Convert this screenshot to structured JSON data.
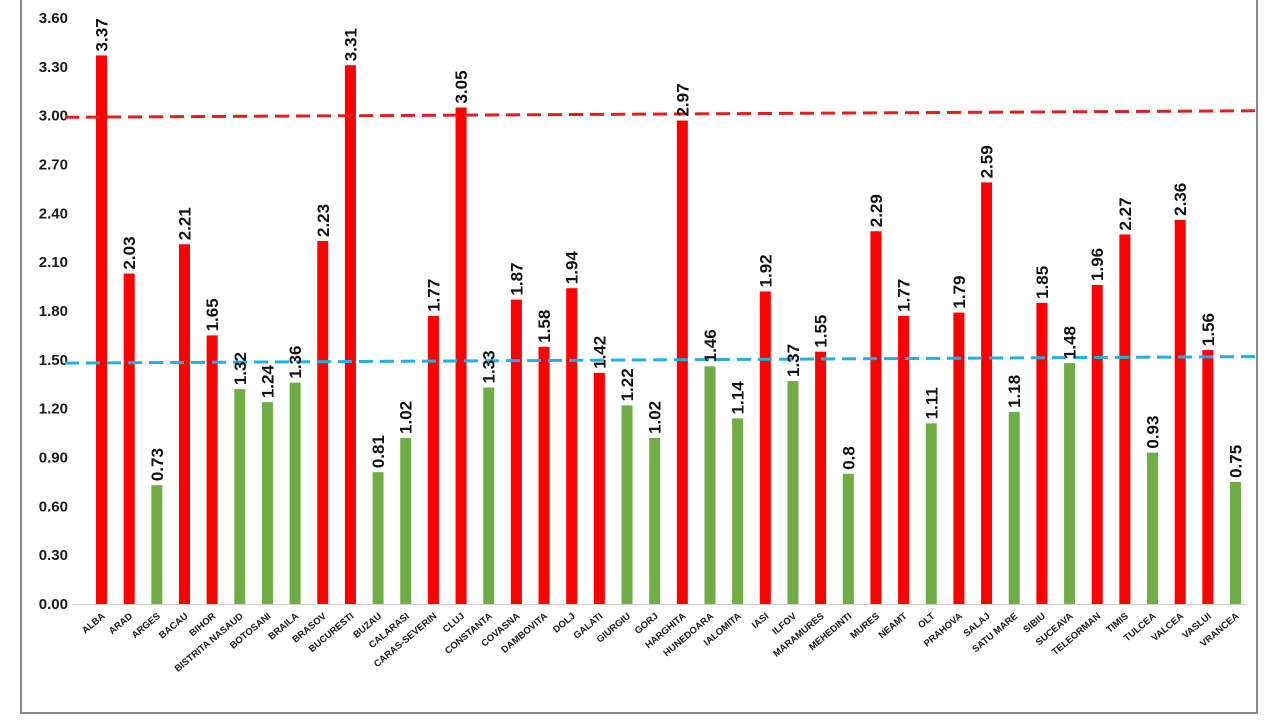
{
  "chart_data": {
    "type": "bar",
    "title": "",
    "xlabel": "",
    "ylabel": "",
    "ylim": [
      0,
      3.6
    ],
    "yticks": [
      "0.00",
      "0.30",
      "0.60",
      "0.90",
      "1.20",
      "1.50",
      "1.80",
      "2.10",
      "2.40",
      "2.70",
      "3.00",
      "3.30",
      "3.60"
    ],
    "grid": false,
    "legend": "none",
    "colors": {
      "above": "#ff0000",
      "below": "#70ad47",
      "upper_line": "#e02020",
      "lower_line": "#1fb1e6"
    },
    "categories": [
      "ALBA",
      "ARAD",
      "ARGES",
      "BACAU",
      "BIHOR",
      "BISTRITA NASAUD",
      "BOTOSANI",
      "BRAILA",
      "BRASOV",
      "BUCURESTI",
      "BUZAU",
      "CALARASI",
      "CARAS-SEVERIN",
      "CLUJ",
      "CONSTANTA",
      "COVASNA",
      "DAMBOVITA",
      "DOLJ",
      "GALATI",
      "GIURGIU",
      "GORJ",
      "HARGHITA",
      "HUNEDOARA",
      "IALOMITA",
      "IASI",
      "ILFOV",
      "MARAMURES",
      "MEHEDINTI",
      "MURES",
      "NEAMT",
      "OLT",
      "PRAHOVA",
      "SALAJ",
      "SATU MARE",
      "SIBIU",
      "SUCEAVA",
      "TELEORMAN",
      "TIMIS",
      "TULCEA",
      "VALCEA",
      "VASLUI",
      "VRANCEA"
    ],
    "values": [
      3.37,
      2.03,
      0.73,
      2.21,
      1.65,
      1.32,
      1.24,
      1.36,
      2.23,
      3.31,
      0.81,
      1.02,
      1.77,
      3.05,
      1.33,
      1.87,
      1.58,
      1.94,
      1.42,
      1.22,
      1.02,
      2.97,
      1.46,
      1.14,
      1.92,
      1.37,
      1.55,
      0.8,
      2.29,
      1.77,
      1.11,
      1.79,
      2.59,
      1.18,
      1.85,
      1.48,
      1.96,
      2.27,
      0.93,
      2.36,
      1.56,
      0.75
    ],
    "value_labels": [
      "3.37",
      "2.03",
      "0.73",
      "2.21",
      "1.65",
      "1.32",
      "1.24",
      "1.36",
      "2.23",
      "3.31",
      "0.81",
      "1.02",
      "1.77",
      "3.05",
      "1.33",
      "1.87",
      "1.58",
      "1.94",
      "1.42",
      "1.22",
      "1.02",
      "2.97",
      "1.46",
      "1.14",
      "1.92",
      "1.37",
      "1.55",
      "0.8",
      "2.29",
      "1.77",
      "1.11",
      "1.79",
      "2.59",
      "1.18",
      "1.85",
      "1.48",
      "1.96",
      "2.27",
      "0.93",
      "2.36",
      "1.56",
      "0.75"
    ],
    "bar_colors": [
      "above",
      "above",
      "below",
      "above",
      "above",
      "below",
      "below",
      "below",
      "above",
      "above",
      "below",
      "below",
      "above",
      "above",
      "below",
      "above",
      "above",
      "above",
      "above",
      "below",
      "below",
      "above",
      "below",
      "below",
      "above",
      "below",
      "above",
      "below",
      "above",
      "above",
      "below",
      "above",
      "above",
      "below",
      "above",
      "below",
      "above",
      "above",
      "below",
      "above",
      "above",
      "below"
    ],
    "reference_lines": [
      {
        "style": "dashed",
        "color": "upper_line",
        "y_start": 2.99,
        "y_end": 3.03
      },
      {
        "style": "dashed",
        "color": "lower_line",
        "y_start": 1.48,
        "y_end": 1.52
      }
    ]
  }
}
